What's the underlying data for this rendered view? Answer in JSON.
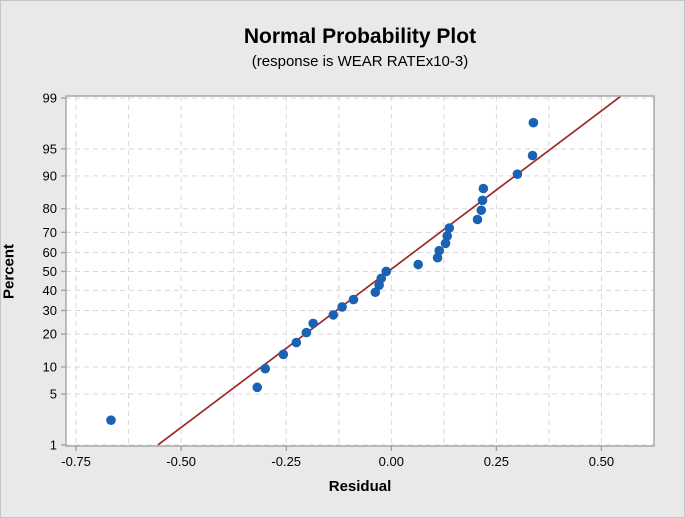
{
  "figure": {
    "background": "#e9e9e9",
    "border_color": "#c6c6c6",
    "plot_background": "#ffffff"
  },
  "chart_data": {
    "type": "scatter",
    "title": "Normal Probability Plot",
    "subtitle": "(response is WEAR RATEx10-3)",
    "xlabel": "Residual",
    "ylabel": "Percent",
    "legend": "none",
    "grid": "dashed both axes; minor vertical gridlines every 0.125",
    "y_scale": "normal-probability (percent, probit spacing)",
    "xlim": [
      -0.774,
      0.625
    ],
    "ylim_percent": [
      0.96,
      99.07
    ],
    "x_ticks": [
      -0.75,
      -0.5,
      -0.25,
      0,
      0.25,
      0.5
    ],
    "x_tick_labels": [
      "-0.75",
      "-0.50",
      "-0.25",
      "0.00",
      "0.25",
      "0.50"
    ],
    "x_minor_grid_step": 0.125,
    "y_ticks": [
      1,
      5,
      10,
      20,
      30,
      40,
      50,
      60,
      70,
      80,
      90,
      95,
      99
    ],
    "points_format": "[residual, percent]",
    "points": [
      [
        -0.667,
        2.3
      ],
      [
        -0.319,
        6.0
      ],
      [
        -0.3,
        9.6
      ],
      [
        -0.257,
        13.3
      ],
      [
        -0.226,
        17.0
      ],
      [
        -0.202,
        20.6
      ],
      [
        -0.186,
        24.3
      ],
      [
        -0.138,
        28.0
      ],
      [
        -0.117,
        31.7
      ],
      [
        -0.09,
        35.3
      ],
      [
        -0.038,
        39.0
      ],
      [
        -0.029,
        42.7
      ],
      [
        -0.024,
        46.3
      ],
      [
        -0.012,
        50.0
      ],
      [
        0.064,
        53.7
      ],
      [
        0.11,
        57.3
      ],
      [
        0.114,
        61.0
      ],
      [
        0.129,
        64.7
      ],
      [
        0.133,
        68.3
      ],
      [
        0.138,
        72.0
      ],
      [
        0.205,
        75.7
      ],
      [
        0.214,
        79.4
      ],
      [
        0.217,
        83.0
      ],
      [
        0.219,
        86.7
      ],
      [
        0.3,
        90.4
      ],
      [
        0.336,
        94.0
      ],
      [
        0.338,
        97.7
      ]
    ],
    "fit_line": {
      "residuals": [
        -0.555,
        0.545
      ],
      "percents": [
        1.0,
        99.05
      ]
    },
    "colors": {
      "point": "#1a63b4",
      "line": "#9a2a26",
      "grid": "#d8d8d8",
      "frame": "#a3a3a3",
      "text": "#000000"
    }
  }
}
